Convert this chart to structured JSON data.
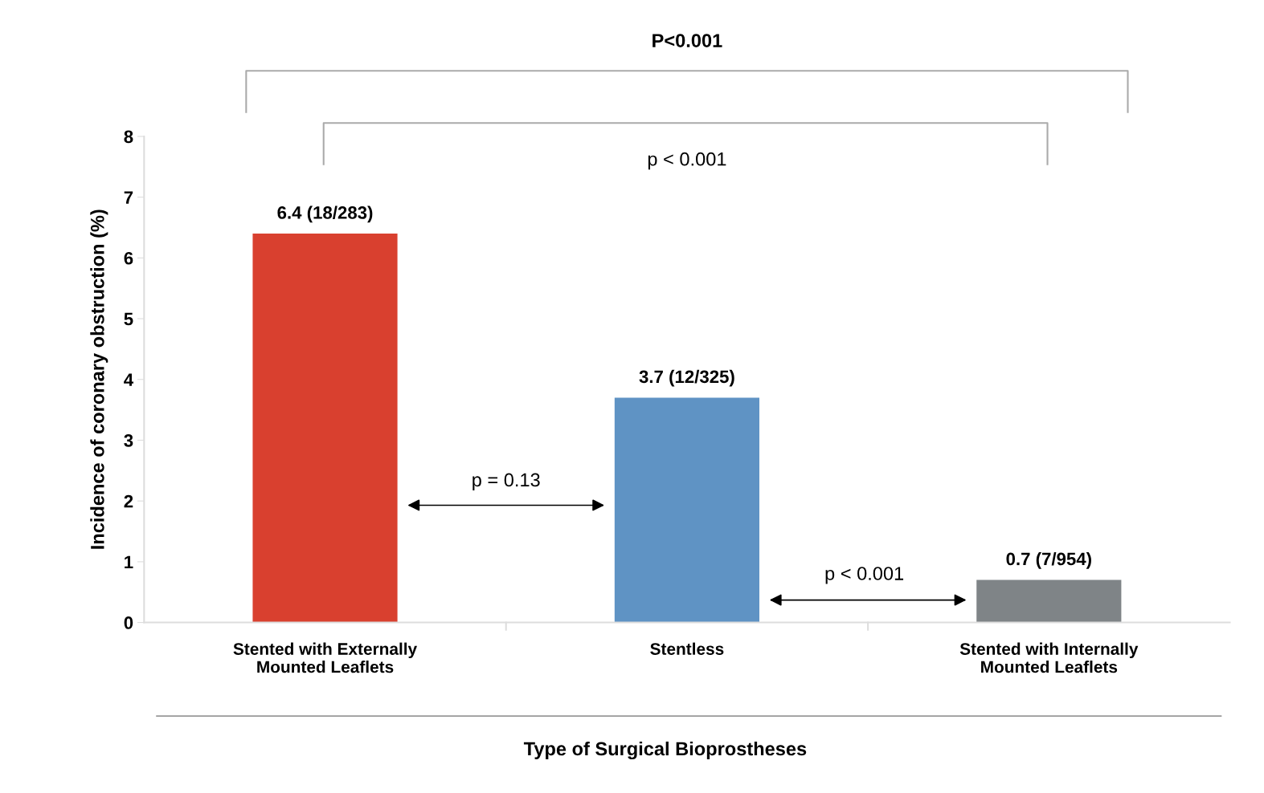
{
  "chart_data": {
    "type": "bar",
    "xlabel": "Type of Surgical Bioprostheses",
    "ylabel": "Incidence of coronary obstruction (%)",
    "categories": [
      "Stented with Externally\nMounted Leaflets",
      "Stentless",
      "Stented with Internally\nMounted Leaflets"
    ],
    "values": [
      6.4,
      3.7,
      0.7
    ],
    "colors": [
      "#d9402f",
      "#5f93c4",
      "#7f8487"
    ],
    "value_labels": [
      "6.4 (18/283)",
      "3.7 (12/325)",
      "0.7 (7/954)"
    ],
    "ylim": [
      0,
      8
    ],
    "yticks": [
      0,
      1,
      2,
      3,
      4,
      5,
      6,
      7,
      8
    ],
    "grid": false,
    "legend": false,
    "annotations": [
      "P<0.001",
      "p < 0.001",
      "p = 0.13",
      "p < 0.001"
    ]
  }
}
